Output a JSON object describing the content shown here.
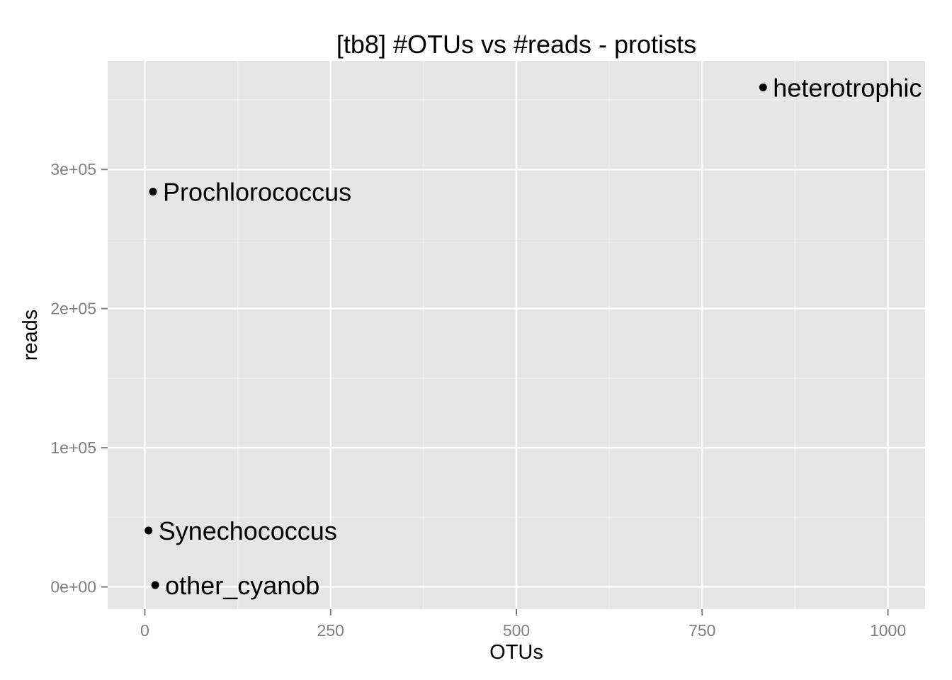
{
  "chart_data": {
    "type": "scatter",
    "title": "[tb8] #OTUs vs #reads - protists",
    "xlabel": "OTUs",
    "ylabel": "reads",
    "xlim": [
      -50,
      1050
    ],
    "ylim": [
      -16000,
      378000
    ],
    "x_ticks": [
      0,
      250,
      500,
      750,
      1000
    ],
    "x_tick_labels": [
      "0",
      "250",
      "500",
      "750",
      "1000"
    ],
    "y_ticks": [
      0,
      100000,
      200000,
      300000
    ],
    "y_tick_labels": [
      "0e+00",
      "1e+05",
      "2e+05",
      "3e+05"
    ],
    "grid": true,
    "legend": "none",
    "points": [
      {
        "label": "heterotrophic",
        "x": 832,
        "y": 359000
      },
      {
        "label": "Prochlorococcus",
        "x": 11,
        "y": 284000
      },
      {
        "label": "Synechococcus",
        "x": 5,
        "y": 40500
      },
      {
        "label": "other_cyanob",
        "x": 14,
        "y": 1300
      }
    ],
    "colors": {
      "panel": "#e5e5e5",
      "grid_major": "#ffffff",
      "grid_minor": "#f2f2f2",
      "point": "#000000"
    }
  }
}
